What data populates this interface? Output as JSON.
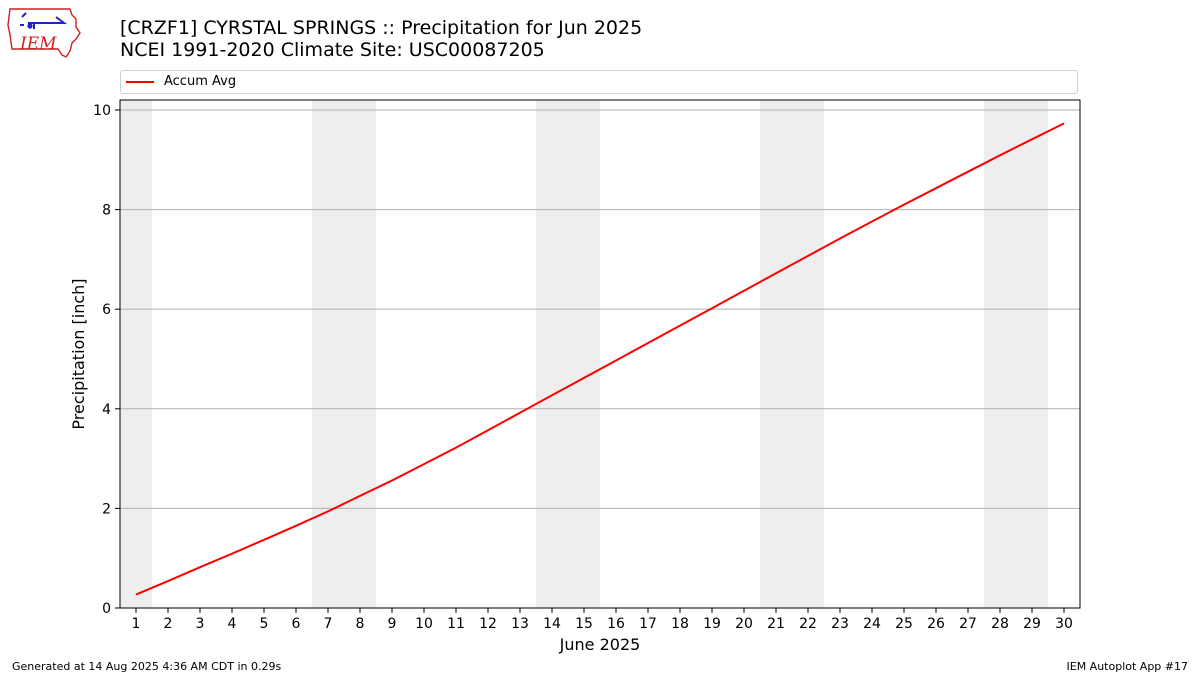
{
  "header": {
    "title_line1": "[CRZF1] CYRSTAL SPRINGS :: Precipitation for Jun 2025",
    "title_line2": "NCEI 1991-2020 Climate Site: USC00087205",
    "logo_text": "IEM"
  },
  "legend": {
    "entries": [
      {
        "label": "Accum Avg",
        "color": "#ff0000"
      }
    ]
  },
  "footer": {
    "left": "Generated at 14 Aug 2025 4:36 AM CDT in 0.29s",
    "right": "IEM Autoplot App #17"
  },
  "colors": {
    "series": "#ff0000",
    "weekend_shade": "#eeeeee",
    "grid": "#b0b0b0",
    "logo_red": "#cc2222",
    "logo_blue": "#2222cc"
  },
  "chart_data": {
    "type": "line",
    "xlabel": "June 2025",
    "ylabel": "Precipitation [inch]",
    "xlim": [
      0.5,
      30.5
    ],
    "ylim": [
      0,
      10.2
    ],
    "x_ticks": [
      1,
      2,
      3,
      4,
      5,
      6,
      7,
      8,
      9,
      10,
      11,
      12,
      13,
      14,
      15,
      16,
      17,
      18,
      19,
      20,
      21,
      22,
      23,
      24,
      25,
      26,
      27,
      28,
      29,
      30
    ],
    "y_ticks": [
      0,
      2,
      4,
      6,
      8,
      10
    ],
    "grid": "horizontal",
    "legend_placement": "top",
    "weekend_bands": [
      [
        0.5,
        1.5
      ],
      [
        6.5,
        8.5
      ],
      [
        13.5,
        15.5
      ],
      [
        20.5,
        22.5
      ],
      [
        27.5,
        29.5
      ]
    ],
    "series": [
      {
        "name": "Accum Avg",
        "x": [
          1,
          2,
          3,
          4,
          5,
          6,
          7,
          8,
          9,
          10,
          11,
          12,
          13,
          14,
          15,
          16,
          17,
          18,
          19,
          20,
          21,
          22,
          23,
          24,
          25,
          26,
          27,
          28,
          29,
          30
        ],
        "values": [
          0.27,
          0.54,
          0.82,
          1.09,
          1.37,
          1.65,
          1.94,
          2.25,
          2.56,
          2.89,
          3.22,
          3.57,
          3.92,
          4.27,
          4.62,
          4.97,
          5.32,
          5.67,
          6.02,
          6.37,
          6.72,
          7.07,
          7.42,
          7.76,
          8.1,
          8.43,
          8.76,
          9.09,
          9.41,
          9.73
        ]
      }
    ]
  }
}
